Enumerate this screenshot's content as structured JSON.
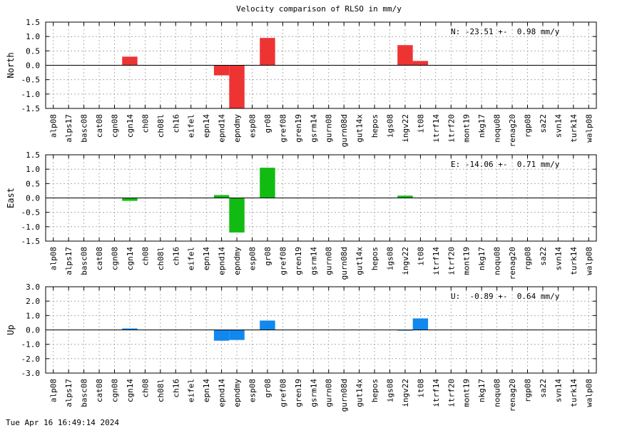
{
  "title": "Velocity comparison of RLSO in mm/y",
  "footer": "Tue Apr 16 16:49:14 2024",
  "chart_data": [
    {
      "type": "bar",
      "ylabel": "North",
      "annotation": "N: -23.51 +-  0.98 mm/y",
      "ylim": [
        -1.5,
        1.5
      ],
      "yticks": [
        -1.5,
        -1.0,
        -0.5,
        0.0,
        0.5,
        1.0,
        1.5
      ],
      "ytick_labels": [
        "-1.5",
        "-1.0",
        "-0.5",
        "0.0",
        "0.5",
        "1.0",
        "1.5"
      ],
      "color": "#ee3333",
      "grid": true,
      "categories": [
        "alp08",
        "alps17",
        "basc08",
        "cat08",
        "cgn08",
        "cgn14",
        "ch08",
        "ch08l",
        "ch16",
        "eifel",
        "epn14",
        "epnd14",
        "epndmy",
        "esp08",
        "gr08",
        "gref08",
        "gren19",
        "gsrm14",
        "gurn08",
        "gurn08d",
        "gut14x",
        "hepos",
        "igs08",
        "ingv22",
        "it08",
        "itrf14",
        "itrf20",
        "mont19",
        "nkg17",
        "noqu08",
        "renag20",
        "rgp08",
        "sa22",
        "svn14",
        "turk14",
        "walp08"
      ],
      "values": [
        0,
        0,
        0,
        0,
        0,
        0.3,
        0,
        0,
        0,
        0,
        0,
        -0.35,
        -1.5,
        0,
        0.95,
        0,
        0,
        0,
        0,
        0,
        0,
        0,
        0,
        0.7,
        0.15,
        0,
        0,
        0,
        0,
        0,
        0,
        0,
        0,
        0,
        0,
        0
      ]
    },
    {
      "type": "bar",
      "ylabel": "East",
      "annotation": "E: -14.06 +-  0.71 mm/y",
      "ylim": [
        -1.5,
        1.5
      ],
      "yticks": [
        -1.5,
        -1.0,
        -0.5,
        0.0,
        0.5,
        1.0,
        1.5
      ],
      "ytick_labels": [
        "-1.5",
        "-1.0",
        "-0.5",
        "0.0",
        "0.5",
        "1.0",
        "1.5"
      ],
      "color": "#11bb11",
      "grid": true,
      "categories": [
        "alp08",
        "alps17",
        "basc08",
        "cat08",
        "cgn08",
        "cgn14",
        "ch08",
        "ch08l",
        "ch16",
        "eifel",
        "epn14",
        "epnd14",
        "epndmy",
        "esp08",
        "gr08",
        "gref08",
        "gren19",
        "gsrm14",
        "gurn08",
        "gurn08d",
        "gut14x",
        "hepos",
        "igs08",
        "ingv22",
        "it08",
        "itrf14",
        "itrf20",
        "mont19",
        "nkg17",
        "noqu08",
        "renag20",
        "rgp08",
        "sa22",
        "svn14",
        "turk14",
        "walp08"
      ],
      "values": [
        0,
        0,
        0,
        0,
        0,
        -0.1,
        0,
        0,
        0,
        0,
        0,
        0.1,
        -1.2,
        0,
        1.05,
        0,
        0,
        0,
        0,
        0,
        0,
        0,
        0,
        0.08,
        0,
        0,
        0,
        0,
        0,
        0,
        0,
        0,
        0,
        0,
        0,
        0
      ]
    },
    {
      "type": "bar",
      "ylabel": "Up",
      "annotation": "U:  -0.89 +-  0.64 mm/y",
      "ylim": [
        -3.0,
        3.0
      ],
      "yticks": [
        -3.0,
        -2.0,
        -1.0,
        0.0,
        1.0,
        2.0,
        3.0
      ],
      "ytick_labels": [
        "-3.0",
        "-2.0",
        "-1.0",
        "0.0",
        "1.0",
        "2.0",
        "3.0"
      ],
      "color": "#1188ee",
      "grid": true,
      "categories": [
        "alp08",
        "alps17",
        "basc08",
        "cat08",
        "cgn08",
        "cgn14",
        "ch08",
        "ch08l",
        "ch16",
        "eifel",
        "epn14",
        "epnd14",
        "epndmy",
        "esp08",
        "gr08",
        "gref08",
        "gren19",
        "gsrm14",
        "gurn08",
        "gurn08d",
        "gut14x",
        "hepos",
        "igs08",
        "ingv22",
        "it08",
        "itrf14",
        "itrf20",
        "mont19",
        "nkg17",
        "noqu08",
        "renag20",
        "rgp08",
        "sa22",
        "svn14",
        "turk14",
        "walp08"
      ],
      "values": [
        0,
        0,
        0,
        0,
        0,
        0.1,
        0,
        0,
        0,
        0,
        0,
        -0.75,
        -0.7,
        0,
        0.65,
        0,
        0,
        0,
        0,
        0,
        0,
        0,
        0,
        -0.05,
        0.8,
        0,
        0,
        0,
        0,
        0,
        0,
        0,
        0,
        0,
        0,
        0
      ]
    }
  ]
}
